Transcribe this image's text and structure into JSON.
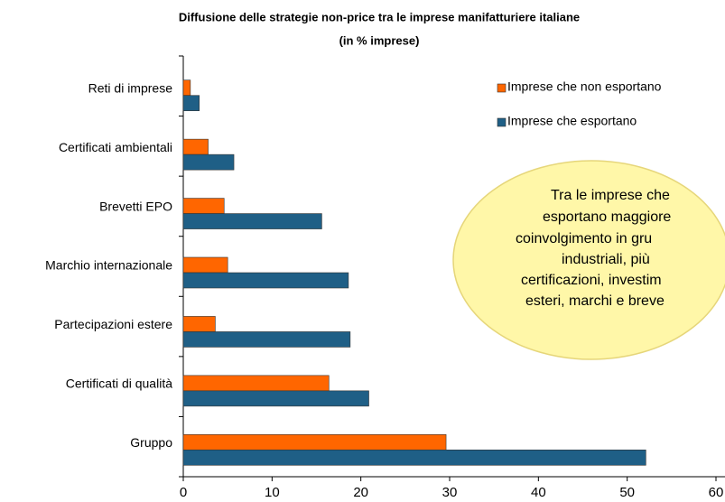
{
  "chart_data": {
    "type": "bar",
    "orientation": "horizontal",
    "title": "Diffusione  delle strategie  non-price  tra le imprese  manifatturiere  italiane",
    "subtitle": "(in % imprese)",
    "categories": [
      "Reti di imprese",
      "Certificati ambientali",
      "Brevetti EPO",
      "Marchio internazionale",
      "Partecipazioni estere",
      "Certificati di qualità",
      "Gruppo"
    ],
    "series": [
      {
        "name": "Imprese che non esportano",
        "color": "#ff6600",
        "values": [
          0.8,
          2.8,
          4.6,
          5.0,
          3.6,
          16.4,
          29.6
        ]
      },
      {
        "name": "Imprese che esportano",
        "color": "#1f5f86",
        "values": [
          1.8,
          5.7,
          15.6,
          18.6,
          18.8,
          20.9,
          52.1
        ]
      }
    ],
    "xlim": [
      0,
      60
    ],
    "xticks": [
      0,
      10,
      20,
      30,
      40,
      50,
      60
    ],
    "annotation": [
      "Tra le imprese che",
      "esportano maggiore",
      "coinvolgimento  in gru",
      "industriali, più",
      "certificazioni, investim",
      "esteri, marchi  e breve"
    ]
  }
}
